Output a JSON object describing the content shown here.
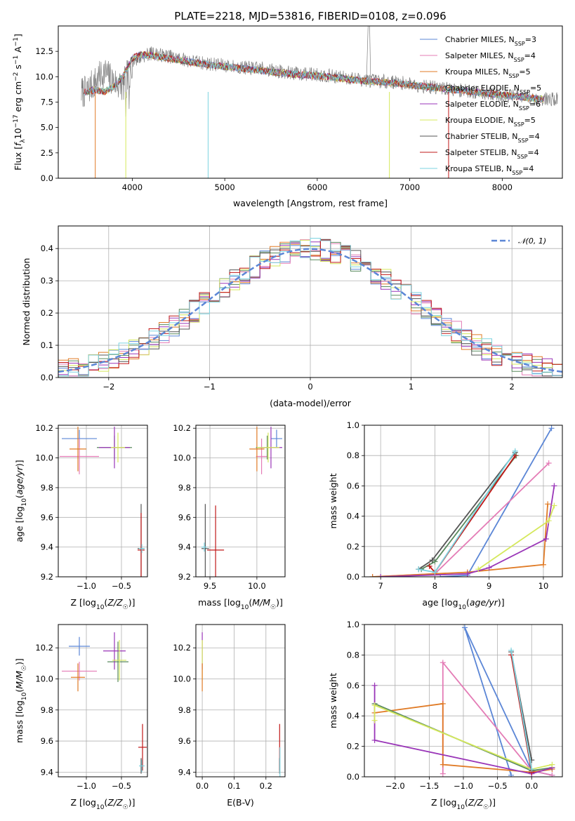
{
  "chart_data": [
    {
      "id": "spectrum",
      "type": "line",
      "title": "PLATE=2218, MJD=53816, FIBERID=0108, z=0.096",
      "xlabel": "wavelength [Angstrom, rest frame]",
      "ylabel": "Flux [f_λ 10^-17 erg cm^-2 s^-1 A^-1]",
      "xlim": [
        3200,
        8650
      ],
      "ylim": [
        0,
        15
      ],
      "xticks": [
        4000,
        5000,
        6000,
        7000,
        8000
      ],
      "yticks": [
        0.0,
        2.5,
        5.0,
        7.5,
        10.0,
        12.5
      ],
      "grid": false,
      "legend_position": "top-right",
      "data_spectrum": {
        "wavelength": [
          3500,
          3600,
          3700,
          3800,
          3900,
          4000,
          4100,
          4200,
          4400,
          4600,
          4800,
          5000,
          5200,
          5400,
          5600,
          5800,
          6000,
          6200,
          6400,
          6600,
          6800,
          7000,
          7200,
          7400,
          7600,
          7800,
          8000,
          8200,
          8400
        ],
        "flux": [
          8.5,
          9.5,
          10.5,
          9.5,
          9.0,
          11.5,
          12.0,
          12.3,
          12.0,
          11.6,
          11.3,
          11.1,
          10.9,
          10.8,
          10.5,
          10.3,
          10.2,
          10.0,
          9.8,
          9.6,
          9.5,
          9.3,
          9.0,
          8.8,
          8.6,
          8.4,
          8.2,
          8.0,
          7.8
        ]
      },
      "model_spectrum": {
        "wavelength": [
          3450,
          3600,
          3700,
          3800,
          3900,
          4000,
          4100,
          4200,
          4400,
          4600,
          4800,
          5000,
          5200,
          5400,
          5600,
          5800,
          6000,
          6200,
          6400,
          6600,
          6800,
          7000,
          7200,
          7400,
          7600,
          7800,
          8000,
          8200,
          8400
        ],
        "flux": [
          8.4,
          8.7,
          8.5,
          9.0,
          10.0,
          11.8,
          12.2,
          12.1,
          11.8,
          11.5,
          11.2,
          11.0,
          10.8,
          10.6,
          10.4,
          10.2,
          10.1,
          9.9,
          9.7,
          9.5,
          9.4,
          9.2,
          9.0,
          8.8,
          8.6,
          8.4,
          8.2,
          8.0,
          7.8
        ]
      },
      "series": [
        {
          "name": "Chabrier MILES, N_SSP=3",
          "label_main": "Chabrier MILES, N",
          "label_sub": "SSP",
          "label_tail": "=3",
          "color": "#5b86d6"
        },
        {
          "name": "Salpeter MILES, N_SSP=4",
          "label_main": "Salpeter MILES, N",
          "label_sub": "SSP",
          "label_tail": "=4",
          "color": "#e47cb6"
        },
        {
          "name": "Kroupa MILES, N_SSP=5",
          "label_main": "Kroupa MILES, N",
          "label_sub": "SSP",
          "label_tail": "=5",
          "color": "#e07b26"
        },
        {
          "name": "Chabrier ELODIE, N_SSP=5",
          "label_main": "Chabrier ELODIE, N",
          "label_sub": "SSP",
          "label_tail": "=5",
          "color": "#5a8a5f"
        },
        {
          "name": "Salpeter ELODIE, N_SSP=6",
          "label_main": "Salpeter ELODIE, N",
          "label_sub": "SSP",
          "label_tail": "=6",
          "color": "#9a36b8"
        },
        {
          "name": "Kroupa ELODIE, N_SSP=5",
          "label_main": "Kroupa ELODIE, N",
          "label_sub": "SSP",
          "label_tail": "=5",
          "color": "#d5e85c"
        },
        {
          "name": "Chabrier STELIB, N_SSP=4",
          "label_main": "Chabrier STELIB, N",
          "label_sub": "SSP",
          "label_tail": "=4",
          "color": "#555555"
        },
        {
          "name": "Salpeter STELIB, N_SSP=4",
          "label_main": "Salpeter STELIB, N",
          "label_sub": "SSP",
          "label_tail": "=4",
          "color": "#c01818"
        },
        {
          "name": "Kroupa STELIB, N_SSP=4",
          "label_main": "Kroupa STELIB, N",
          "label_sub": "SSP",
          "label_tail": "=4",
          "color": "#7dd3e0"
        }
      ]
    },
    {
      "id": "residuals",
      "type": "histogram",
      "xlabel": "(data-model)/error",
      "ylabel": "Normed distribution",
      "xlim": [
        -2.5,
        2.5
      ],
      "ylim": [
        0,
        0.47
      ],
      "xticks": [
        -2,
        -1,
        0,
        1,
        2
      ],
      "yticks": [
        0.0,
        0.1,
        0.2,
        0.3,
        0.4
      ],
      "grid": true,
      "legend_position": "top-right",
      "reference_curve": {
        "name": "N(0,1)",
        "label": "𝒩(0, 1)",
        "color": "#5b86d6",
        "style": "dashed"
      },
      "bin_width": 0.1,
      "series_colors": [
        "#5b86d6",
        "#e47cb6",
        "#e07b26",
        "#5a8a5f",
        "#9a36b8",
        "#d5e85c",
        "#555555",
        "#c01818",
        "#7dd3e0"
      ]
    },
    {
      "id": "age-vs-Z",
      "type": "errorbar",
      "xlabel": "Z [log10(Z/Z☉)]",
      "ylabel": "age [log10(age/yr)]",
      "xlim": [
        -1.4,
        -0.13
      ],
      "ylim": [
        9.2,
        10.22
      ],
      "xticks": [
        -1.0,
        -0.5
      ],
      "yticks": [
        9.2,
        9.4,
        9.6,
        9.8,
        10.0,
        10.2
      ],
      "grid": true,
      "points": [
        {
          "color": "#5b86d6",
          "x": -1.1,
          "y": 10.13,
          "xerr": 0.25,
          "yerr": 0.06
        },
        {
          "color": "#e47cb6",
          "x": -1.1,
          "y": 10.01,
          "xerr": 0.28,
          "yerr": 0.12
        },
        {
          "color": "#e07b26",
          "x": -1.12,
          "y": 10.06,
          "xerr": 0.12,
          "yerr": 0.15
        },
        {
          "color": "#5a8a5f",
          "x": -0.6,
          "y": 10.07,
          "xerr": 0.25,
          "yerr": 0.08
        },
        {
          "color": "#9a36b8",
          "x": -0.6,
          "y": 10.07,
          "xerr": 0.22,
          "yerr": 0.14
        },
        {
          "color": "#d5e85c",
          "x": -0.55,
          "y": 10.07,
          "xerr": 0.1,
          "yerr": 0.1
        },
        {
          "color": "#555555",
          "x": -0.22,
          "y": 9.39,
          "xerr": 0.05,
          "yerr": 0.3
        },
        {
          "color": "#c01818",
          "x": -0.22,
          "y": 9.38,
          "xerr": 0.05,
          "yerr": 0.25
        },
        {
          "color": "#7dd3e0",
          "x": -0.21,
          "y": 9.39,
          "xerr": 0.04,
          "yerr": 0.03
        }
      ]
    },
    {
      "id": "age-vs-mass",
      "type": "errorbar",
      "xlabel": "mass [log10(M/M☉)]",
      "ylabel": "",
      "xlim": [
        9.35,
        10.3
      ],
      "ylim": [
        9.2,
        10.22
      ],
      "xticks": [
        9.5,
        10.0
      ],
      "yticks": [
        9.2,
        9.4,
        9.6,
        9.8,
        10.0,
        10.2
      ],
      "grid": true,
      "points": [
        {
          "color": "#5b86d6",
          "x": 10.21,
          "y": 10.13,
          "xerr": 0.06,
          "yerr": 0.06
        },
        {
          "color": "#e47cb6",
          "x": 10.05,
          "y": 10.01,
          "xerr": 0.06,
          "yerr": 0.12
        },
        {
          "color": "#e07b26",
          "x": 10.0,
          "y": 10.06,
          "xerr": 0.08,
          "yerr": 0.15
        },
        {
          "color": "#5a8a5f",
          "x": 10.11,
          "y": 10.07,
          "xerr": 0.12,
          "yerr": 0.08
        },
        {
          "color": "#9a36b8",
          "x": 10.15,
          "y": 10.07,
          "xerr": 0.12,
          "yerr": 0.14
        },
        {
          "color": "#d5e85c",
          "x": 10.12,
          "y": 10.07,
          "xerr": 0.12,
          "yerr": 0.1
        },
        {
          "color": "#555555",
          "x": 9.45,
          "y": 9.39,
          "xerr": 0.04,
          "yerr": 0.3
        },
        {
          "color": "#c01818",
          "x": 9.56,
          "y": 9.38,
          "xerr": 0.09,
          "yerr": 0.3
        },
        {
          "color": "#7dd3e0",
          "x": 9.44,
          "y": 9.4,
          "xerr": 0.03,
          "yerr": 0.03
        }
      ]
    },
    {
      "id": "mass-weight-vs-age",
      "type": "line",
      "xlabel": "age [log10(age/yr)]",
      "ylabel": "mass weight",
      "xlim": [
        6.7,
        10.35
      ],
      "ylim": [
        0,
        1.0
      ],
      "xticks": [
        7,
        8,
        9,
        10
      ],
      "yticks": [
        0.0,
        0.2,
        0.4,
        0.6,
        0.8,
        1.0
      ],
      "grid": true,
      "series": [
        {
          "color": "#5b86d6",
          "x": [
            8.1,
            8.6,
            10.15
          ],
          "y": [
            0.0,
            0.01,
            0.98
          ]
        },
        {
          "color": "#e47cb6",
          "x": [
            6.85,
            8.0,
            10.1
          ],
          "y": [
            0.0,
            0.02,
            0.75
          ]
        },
        {
          "color": "#e07b26",
          "x": [
            6.85,
            8.6,
            10.0,
            10.08
          ],
          "y": [
            0.0,
            0.03,
            0.08,
            0.48
          ]
        },
        {
          "color": "#5a8a5f",
          "x": [
            7.75,
            8.0,
            9.5
          ],
          "y": [
            0.05,
            0.1,
            0.8
          ]
        },
        {
          "color": "#9a36b8",
          "x": [
            7.0,
            8.6,
            9.0,
            10.05,
            10.2
          ],
          "y": [
            0.0,
            0.02,
            0.06,
            0.25,
            0.6
          ]
        },
        {
          "color": "#d5e85c",
          "x": [
            8.8,
            10.1,
            10.2
          ],
          "y": [
            0.05,
            0.37,
            0.47
          ]
        },
        {
          "color": "#555555",
          "x": [
            7.7,
            7.95,
            9.48
          ],
          "y": [
            0.05,
            0.11,
            0.82
          ]
        },
        {
          "color": "#c01818",
          "x": [
            7.9,
            8.0,
            9.48
          ],
          "y": [
            0.07,
            0.03,
            0.8
          ]
        },
        {
          "color": "#7dd3e0",
          "x": [
            7.7,
            8.0,
            9.48
          ],
          "y": [
            0.05,
            0.03,
            0.83
          ]
        }
      ]
    },
    {
      "id": "mass-vs-Z",
      "type": "errorbar",
      "xlabel": "Z [log10(Z/Z☉)]",
      "ylabel": "mass [log10(M/M☉)]",
      "xlim": [
        -1.4,
        -0.13
      ],
      "ylim": [
        9.37,
        10.35
      ],
      "xticks": [
        -1.0,
        -0.5
      ],
      "yticks": [
        9.4,
        9.6,
        9.8,
        10.0,
        10.2
      ],
      "grid": true,
      "points": [
        {
          "color": "#5b86d6",
          "x": -1.1,
          "y": 10.21,
          "xerr": 0.15,
          "yerr": 0.06
        },
        {
          "color": "#e47cb6",
          "x": -1.1,
          "y": 10.05,
          "xerr": 0.25,
          "yerr": 0.06
        },
        {
          "color": "#e07b26",
          "x": -1.12,
          "y": 10.01,
          "xerr": 0.1,
          "yerr": 0.09
        },
        {
          "color": "#5a8a5f",
          "x": -0.55,
          "y": 10.11,
          "xerr": 0.15,
          "yerr": 0.13
        },
        {
          "color": "#9a36b8",
          "x": -0.6,
          "y": 10.18,
          "xerr": 0.16,
          "yerr": 0.12
        },
        {
          "color": "#d5e85c",
          "x": -0.53,
          "y": 10.12,
          "xerr": 0.1,
          "yerr": 0.13
        },
        {
          "color": "#555555",
          "x": -0.22,
          "y": 9.44,
          "xerr": 0.02,
          "yerr": 0.05
        },
        {
          "color": "#c01818",
          "x": -0.2,
          "y": 9.56,
          "xerr": 0.06,
          "yerr": 0.15
        },
        {
          "color": "#7dd3e0",
          "x": -0.21,
          "y": 9.44,
          "xerr": 0.04,
          "yerr": 0.04
        }
      ]
    },
    {
      "id": "mass-vs-EBV",
      "type": "errorbar",
      "xlabel": "E(B-V)",
      "ylabel": "",
      "xlim": [
        -0.02,
        0.26
      ],
      "ylim": [
        9.37,
        10.35
      ],
      "xticks": [
        0.0,
        0.1,
        0.2
      ],
      "yticks": [
        9.4,
        9.6,
        9.8,
        10.0,
        10.2
      ],
      "grid": true,
      "points": [
        {
          "color": "#9a36b8",
          "x": 0.0,
          "y": 10.18,
          "xerr": 0.0,
          "yerr": 0.12
        },
        {
          "color": "#d5e85c",
          "x": 0.0,
          "y": 10.12,
          "xerr": 0.0,
          "yerr": 0.13
        },
        {
          "color": "#e07b26",
          "x": 0.0,
          "y": 10.01,
          "xerr": 0.0,
          "yerr": 0.09
        },
        {
          "color": "#c01818",
          "x": 0.243,
          "y": 9.56,
          "xerr": 0.0,
          "yerr": 0.15
        },
        {
          "color": "#555555",
          "x": 0.243,
          "y": 9.44,
          "xerr": 0.0,
          "yerr": 0.05
        },
        {
          "color": "#7dd3e0",
          "x": 0.244,
          "y": 9.46,
          "xerr": 0.0,
          "yerr": 0.1
        }
      ]
    },
    {
      "id": "mass-weight-vs-Z",
      "type": "line",
      "xlabel": "Z [log10(Z/Z☉)]",
      "ylabel": "mass weight",
      "xlim": [
        -2.45,
        0.45
      ],
      "ylim": [
        0,
        1.0
      ],
      "xticks": [
        -2.0,
        -1.5,
        -1.0,
        -0.5,
        0.0
      ],
      "yticks": [
        0.0,
        0.2,
        0.4,
        0.6,
        0.8,
        1.0
      ],
      "grid": true,
      "series": [
        {
          "color": "#5b86d6",
          "x": [
            -0.3,
            -0.98,
            0.0,
            0.3
          ],
          "y": [
            0.01,
            0.98,
            0.04,
            0.01
          ]
        },
        {
          "color": "#e47cb6",
          "x": [
            -1.3,
            -1.3,
            0.0,
            0.3
          ],
          "y": [
            0.02,
            0.75,
            0.04,
            0.01
          ]
        },
        {
          "color": "#e07b26",
          "x": [
            -2.3,
            -1.3,
            -1.3,
            0.0,
            0.3
          ],
          "y": [
            0.42,
            0.48,
            0.08,
            0.03,
            0.05
          ]
        },
        {
          "color": "#5a8a5f",
          "x": [
            -2.3,
            0.0,
            0.3
          ],
          "y": [
            0.48,
            0.04,
            0.06
          ]
        },
        {
          "color": "#9a36b8",
          "x": [
            -2.3,
            -2.3,
            0.0,
            0.3
          ],
          "y": [
            0.6,
            0.24,
            0.02,
            0.06
          ]
        },
        {
          "color": "#d5e85c",
          "x": [
            -2.3,
            -2.3,
            0.0,
            0.3
          ],
          "y": [
            0.37,
            0.47,
            0.05,
            0.08
          ]
        },
        {
          "color": "#555555",
          "x": [
            -0.3,
            0.0
          ],
          "y": [
            0.82,
            0.11
          ]
        },
        {
          "color": "#c01818",
          "x": [
            -0.3,
            0.0
          ],
          "y": [
            0.8,
            0.03
          ]
        },
        {
          "color": "#7dd3e0",
          "x": [
            -0.3,
            0.0
          ],
          "y": [
            0.83,
            0.05
          ]
        }
      ]
    }
  ]
}
